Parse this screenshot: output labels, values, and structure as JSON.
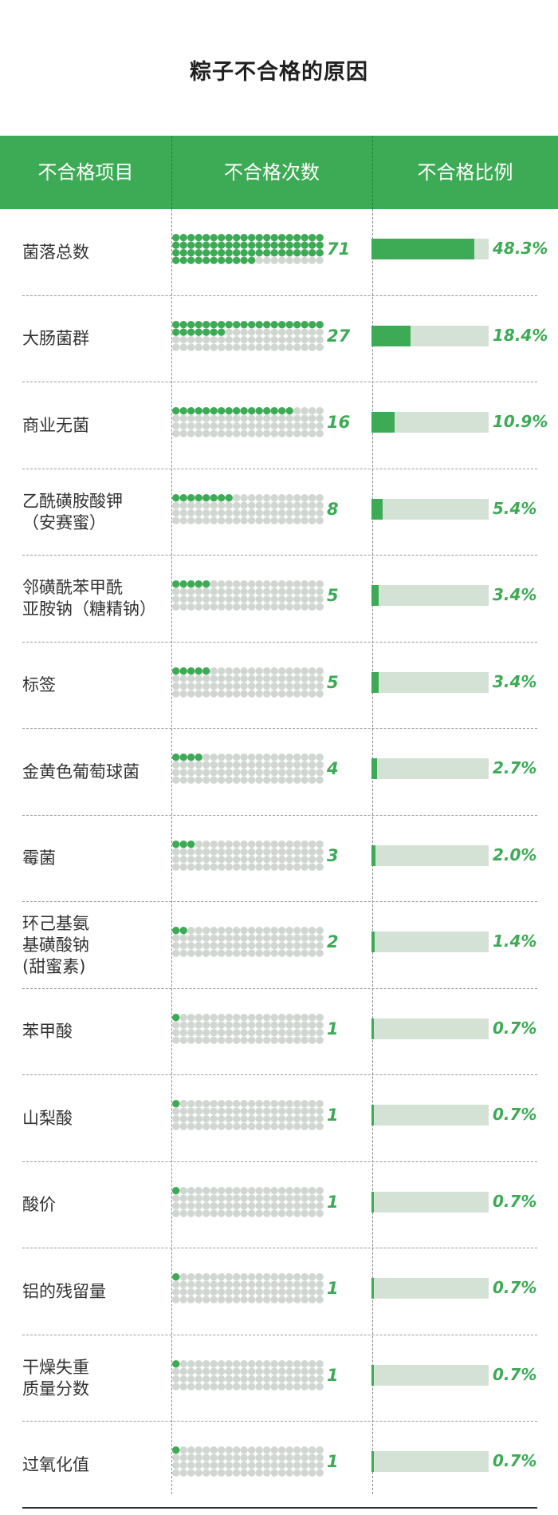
{
  "title": "粽子不合格的原因",
  "columns": [
    "不合格项目",
    "不合格次数",
    "不合格比例"
  ],
  "chart_data": {
    "type": "table",
    "title": "粽子不合格的原因",
    "columns": [
      "不合格项目",
      "不合格次数",
      "不合格比例"
    ],
    "rows": [
      {
        "item": "菌落总数",
        "count": 71,
        "pct_value": 48.3,
        "pct": "48.3%"
      },
      {
        "item": "大肠菌群",
        "count": 27,
        "pct_value": 18.4,
        "pct": "18.4%"
      },
      {
        "item": "商业无菌",
        "count": 16,
        "pct_value": 10.9,
        "pct": "10.9%"
      },
      {
        "item": "乙酰磺胺酸钾\n（安赛蜜）",
        "count": 8,
        "pct_value": 5.4,
        "pct": "5.4%"
      },
      {
        "item": "邻磺酰苯甲酰\n亚胺钠（糖精钠）",
        "count": 5,
        "pct_value": 3.4,
        "pct": "3.4%"
      },
      {
        "item": "标签",
        "count": 5,
        "pct_value": 3.4,
        "pct": "3.4%"
      },
      {
        "item": "金黄色葡萄球菌",
        "count": 4,
        "pct_value": 2.7,
        "pct": "2.7%"
      },
      {
        "item": "霉菌",
        "count": 3,
        "pct_value": 2.0,
        "pct": "2.0%"
      },
      {
        "item": "环己基氨\n基磺酸钠\n(甜蜜素)",
        "count": 2,
        "pct_value": 1.4,
        "pct": "1.4%"
      },
      {
        "item": "苯甲酸",
        "count": 1,
        "pct_value": 0.7,
        "pct": "0.7%"
      },
      {
        "item": "山梨酸",
        "count": 1,
        "pct_value": 0.7,
        "pct": "0.7%"
      },
      {
        "item": "酸价",
        "count": 1,
        "pct_value": 0.7,
        "pct": "0.7%"
      },
      {
        "item": "铝的残留量",
        "count": 1,
        "pct_value": 0.7,
        "pct": "0.7%"
      },
      {
        "item": "干燥失重\n质量分数",
        "count": 1,
        "pct_value": 0.7,
        "pct": "0.7%"
      },
      {
        "item": "过氧化值",
        "count": 1,
        "pct_value": 0.7,
        "pct": "0.7%"
      }
    ],
    "dot_grid": {
      "columns": 20,
      "rows": 4,
      "capacity": 80
    },
    "pct_scale_max": 55
  },
  "colors": {
    "accent": "#3daa55",
    "track": "#d3e2d5",
    "dot_empty": "#d0d7d1"
  }
}
